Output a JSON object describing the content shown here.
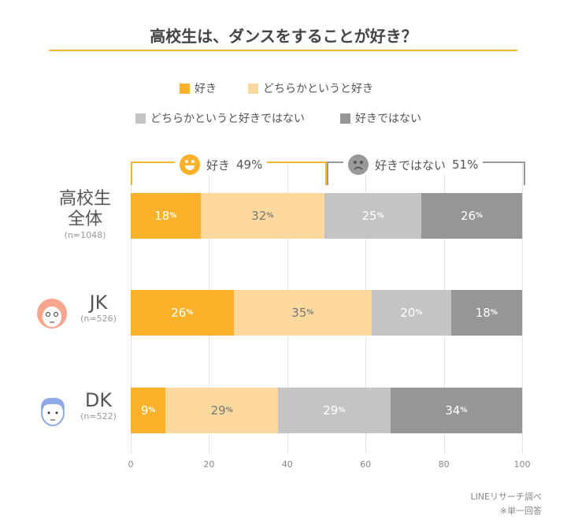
{
  "title": "高校生は、ダンスをすることが好き？",
  "chart_data": {
    "type": "bar",
    "orientation": "horizontal",
    "stacked": true,
    "title": "高校生は、ダンスをすることが好き？",
    "legend": [
      "好き",
      "どちらかというと好き",
      "どちらかというと好きではない",
      "好きではない"
    ],
    "colors": [
      "#fbb22a",
      "#fdd9a0",
      "#c4c4c4",
      "#969696"
    ],
    "xlim": [
      0,
      100
    ],
    "xticks": [
      "0",
      "20",
      "40",
      "60",
      "80",
      "100"
    ],
    "groups": [
      {
        "label": "好き",
        "value": "49%"
      },
      {
        "label": "好きではない",
        "value": "51%"
      }
    ],
    "categories": [
      {
        "label": "高校生\n全体",
        "n": "(n=1048)"
      },
      {
        "label": "JK",
        "n": "(n=526)"
      },
      {
        "label": "DK",
        "n": "(n=522)"
      }
    ],
    "series": [
      {
        "name": "好き",
        "values": [
          18,
          26,
          9
        ]
      },
      {
        "name": "どちらかというと好き",
        "values": [
          32,
          35,
          29
        ]
      },
      {
        "name": "どちらかというと好きではない",
        "values": [
          25,
          20,
          29
        ]
      },
      {
        "name": "好きではない",
        "values": [
          26,
          18,
          34
        ]
      }
    ],
    "pct_unit": "%"
  },
  "footer": {
    "source": "LINEリサーチ調べ",
    "note": "※単一回答"
  }
}
